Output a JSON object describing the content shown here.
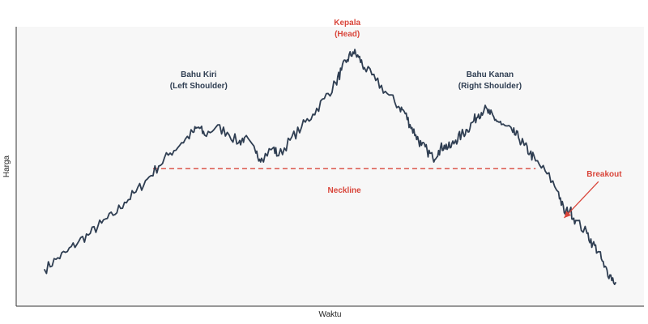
{
  "chart_data": {
    "type": "line",
    "xlabel": "Waktu",
    "ylabel": "Harga",
    "grid": false,
    "x_range": [
      0,
      100
    ],
    "ylim": [
      0,
      100
    ],
    "series": [
      {
        "values": [
          [
            0,
            10
          ],
          [
            2,
            14
          ],
          [
            4,
            17
          ],
          [
            6,
            21
          ],
          [
            8,
            24
          ],
          [
            10,
            28
          ],
          [
            12,
            31
          ],
          [
            14,
            36
          ],
          [
            16,
            40
          ],
          [
            18,
            45
          ],
          [
            20,
            50
          ],
          [
            22,
            55
          ],
          [
            24,
            59
          ],
          [
            26,
            63
          ],
          [
            27,
            65
          ],
          [
            28,
            62
          ],
          [
            30,
            65
          ],
          [
            32,
            63
          ],
          [
            34,
            59
          ],
          [
            35,
            61
          ],
          [
            37,
            55
          ],
          [
            38,
            53
          ],
          [
            40,
            57
          ],
          [
            41,
            54
          ],
          [
            43,
            60
          ],
          [
            45,
            65
          ],
          [
            47,
            70
          ],
          [
            49,
            76
          ],
          [
            51,
            82
          ],
          [
            52,
            87
          ],
          [
            53,
            91
          ],
          [
            54,
            94
          ],
          [
            55,
            92
          ],
          [
            56,
            88
          ],
          [
            58,
            83
          ],
          [
            60,
            78
          ],
          [
            62,
            73
          ],
          [
            63,
            71
          ],
          [
            64,
            66
          ],
          [
            65,
            62
          ],
          [
            66,
            58
          ],
          [
            67,
            56
          ],
          [
            68,
            53
          ],
          [
            69,
            56
          ],
          [
            70,
            58
          ],
          [
            71,
            57
          ],
          [
            72,
            60
          ],
          [
            73,
            62
          ],
          [
            74,
            64
          ],
          [
            75,
            67
          ],
          [
            76,
            70
          ],
          [
            77,
            72
          ],
          [
            78,
            70
          ],
          [
            79,
            68
          ],
          [
            80,
            66
          ],
          [
            82,
            63
          ],
          [
            83,
            61
          ],
          [
            84,
            58
          ],
          [
            85,
            55
          ],
          [
            86,
            52
          ],
          [
            88,
            47
          ],
          [
            90,
            40
          ],
          [
            91,
            32
          ],
          [
            92,
            33
          ],
          [
            93,
            29
          ],
          [
            95,
            24
          ],
          [
            96,
            20
          ],
          [
            97,
            17
          ],
          [
            98,
            11
          ],
          [
            99,
            8
          ],
          [
            100,
            5
          ]
        ]
      }
    ],
    "neckline": {
      "y": 49,
      "x_start": 19,
      "x_end": 86,
      "label": "Neckline"
    },
    "annotations": [
      {
        "id": "left-shoulder",
        "lines": [
          "Bahu Kiri",
          "(Left Shoulder)"
        ],
        "x": 27,
        "y": 80,
        "color": "#2f3e52"
      },
      {
        "id": "head",
        "lines": [
          "Kepala",
          "(Head)"
        ],
        "x": 53,
        "y": 100,
        "color": "#d9463b"
      },
      {
        "id": "right-shoulder",
        "lines": [
          "Bahu Kanan",
          "(Right Shoulder)"
        ],
        "x": 78,
        "y": 80,
        "color": "#2f3e52"
      },
      {
        "id": "breakout",
        "lines": [
          "Breakout"
        ],
        "x": 98,
        "y": 46,
        "color": "#d9463b"
      }
    ],
    "breakout_arrow": {
      "from": [
        97,
        44
      ],
      "to": [
        91,
        30
      ]
    },
    "colors": {
      "line": "#2f3e52",
      "neckline": "#d9463b",
      "axis": "#333333",
      "plot_bg": "#f7f7f7",
      "label_dark": "#2f3e52",
      "label_red": "#d9463b"
    }
  }
}
